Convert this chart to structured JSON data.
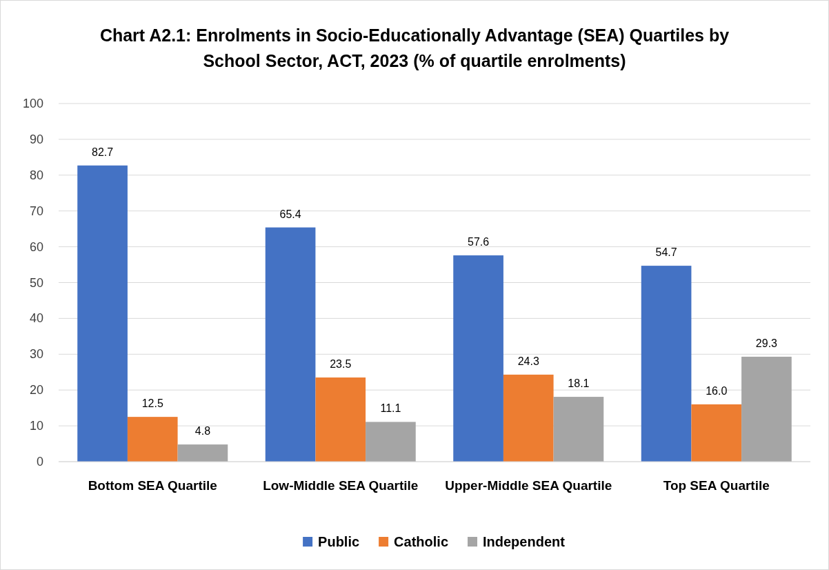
{
  "chart_data": {
    "type": "bar",
    "title": "Chart A2.1: Enrolments in Socio-Educationally Advantage (SEA) Quartiles by School Sector, ACT, 2023 (% of quartile enrolments)",
    "categories": [
      "Bottom SEA Quartile",
      "Low-Middle SEA Quartile",
      "Upper-Middle SEA Quartile",
      "Top SEA Quartile"
    ],
    "series": [
      {
        "name": "Public",
        "color": "#4472c4",
        "values": [
          82.7,
          65.4,
          57.6,
          54.7
        ]
      },
      {
        "name": "Catholic",
        "color": "#ed7d31",
        "values": [
          12.5,
          23.5,
          24.3,
          16.0
        ]
      },
      {
        "name": "Independent",
        "color": "#a5a5a5",
        "values": [
          4.8,
          11.1,
          18.1,
          29.3
        ]
      }
    ],
    "value_labels": [
      [
        "82.7",
        "65.4",
        "57.6",
        "54.7"
      ],
      [
        "12.5",
        "23.5",
        "24.3",
        "16.0"
      ],
      [
        "4.8",
        "11.1",
        "18.1",
        "29.3"
      ]
    ],
    "ylim": [
      0,
      100
    ],
    "yticks": [
      0,
      10,
      20,
      30,
      40,
      50,
      60,
      70,
      80,
      90,
      100
    ],
    "grid": "y",
    "legend": "bottom"
  }
}
